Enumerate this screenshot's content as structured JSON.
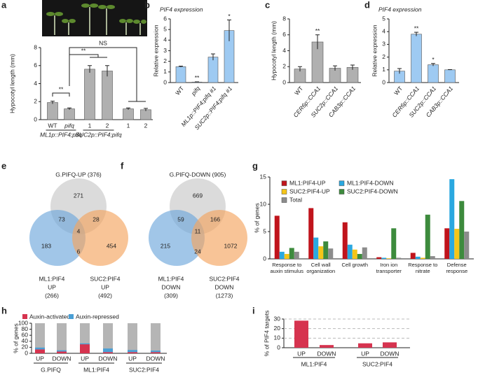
{
  "chart_data": [
    {
      "panel": "a",
      "type": "bar",
      "ylabel": "Hypocotyl length (mm)",
      "categories": [
        "WT",
        "pifq",
        "1",
        "2",
        "1",
        "2"
      ],
      "values": [
        1.9,
        1.2,
        5.6,
        5.4,
        1.2,
        1.1
      ],
      "errors": [
        0.15,
        0.1,
        0.4,
        0.6,
        0.1,
        0.15
      ],
      "group_labels": [
        "ML1p::PIF4;pifq",
        "SUC2p::PIF4;pifq"
      ],
      "annotations": [
        "**",
        "**",
        "NS"
      ],
      "color": "#b0b0b0",
      "ylim": [
        0,
        8
      ],
      "yticks": [
        0,
        2,
        4,
        6,
        8
      ]
    },
    {
      "panel": "b",
      "type": "bar",
      "title": "PIF4 expression",
      "ylabel": "Relative expression",
      "categories": [
        "WT",
        "pifq",
        "ML1p::PIF4;pifq #1",
        "SUC2p::PIF4;pifq #1"
      ],
      "values": [
        1.5,
        0.05,
        2.4,
        4.9
      ],
      "errors": [
        0.05,
        0.02,
        0.3,
        1.0
      ],
      "annotations": [
        "**",
        "*"
      ],
      "color": "#9ecaf2",
      "ylim": [
        0,
        6
      ],
      "yticks": [
        0,
        1,
        2,
        3,
        4,
        5,
        6
      ]
    },
    {
      "panel": "c",
      "type": "bar",
      "ylabel": "Hypocotyl length (mm)",
      "categories": [
        "WT",
        "CER6p::CCA1",
        "SUC2p::CCA1",
        "CAB3p::CCA1"
      ],
      "values": [
        1.7,
        5.1,
        1.8,
        1.9
      ],
      "errors": [
        0.3,
        0.9,
        0.3,
        0.3
      ],
      "annotations": [
        "**"
      ],
      "color": "#b0b0b0",
      "ylim": [
        0,
        8
      ],
      "yticks": [
        0,
        2,
        4,
        6,
        8
      ]
    },
    {
      "panel": "d",
      "type": "bar",
      "title": "PIF4 expression",
      "ylabel": "Relative expression",
      "categories": [
        "WT",
        "CER6p::CCA1",
        "SUC2p::CCA1",
        "CAB3p::CCA1"
      ],
      "values": [
        0.9,
        3.8,
        1.4,
        1.0
      ],
      "errors": [
        0.2,
        0.15,
        0.1,
        0.02
      ],
      "annotations": [
        "**",
        "*"
      ],
      "color": "#9ecaf2",
      "ylim": [
        0,
        5
      ],
      "yticks": [
        0,
        1,
        2,
        3,
        4,
        5
      ]
    },
    {
      "panel": "e",
      "type": "venn",
      "title": "G.PIFQ-UP (376)",
      "left_label": [
        "ML1:PIF4",
        "UP",
        "(266)"
      ],
      "right_label": [
        "SUC2:PIF4",
        "UP",
        "(492)"
      ],
      "regions": {
        "only_top": 271,
        "only_left": 183,
        "only_right": 454,
        "top_left": 73,
        "top_right": 28,
        "left_right": 6,
        "all": 4
      }
    },
    {
      "panel": "f",
      "type": "venn",
      "title": "G.PIFQ-DOWN (905)",
      "left_label": [
        "ML1:PIF4",
        "DOWN",
        "(309)"
      ],
      "right_label": [
        "SUC2:PIF4",
        "DOWN",
        "(1273)"
      ],
      "regions": {
        "only_top": 669,
        "only_left": 215,
        "only_right": 1072,
        "top_left": 59,
        "top_right": 166,
        "left_right": 24,
        "all": 11
      }
    },
    {
      "panel": "g",
      "type": "grouped_bar",
      "ylabel": "% of genes",
      "categories": [
        "Response to auxin stimulus",
        "Cell wall organization",
        "Cell growth",
        "Iron ion transporter",
        "Response to nitrate",
        "Defense response"
      ],
      "series": [
        {
          "name": "ML1:PIF4-UP",
          "color": "#c0141c",
          "values": [
            7.9,
            9.3,
            6.7,
            0.3,
            1.1,
            5.6
          ]
        },
        {
          "name": "ML1:PIF4-DOWN",
          "color": "#2aa8e0",
          "values": [
            1.3,
            3.9,
            2.6,
            0.2,
            0.4,
            14.6
          ]
        },
        {
          "name": "SUC2:PIF4-UP",
          "color": "#f5c518",
          "values": [
            0.9,
            2.3,
            1.7,
            0.1,
            0.2,
            5.5
          ]
        },
        {
          "name": "SUC2:PIF4-DOWN",
          "color": "#3d8b3d",
          "values": [
            2.0,
            3.2,
            0.9,
            5.6,
            8.1,
            10.6
          ]
        },
        {
          "name": "Total",
          "color": "#8c8c8c",
          "values": [
            1.3,
            1.9,
            2.1,
            0.2,
            0.5,
            5.0
          ]
        }
      ],
      "ylim": [
        0,
        15
      ],
      "yticks": [
        0,
        5,
        10,
        15
      ]
    },
    {
      "panel": "h",
      "type": "stacked_bar",
      "ylabel": "% of genes",
      "categories": [
        "UP",
        "DOWN",
        "UP",
        "DOWN",
        "UP",
        "DOWN"
      ],
      "group_labels": [
        "G.PIFQ",
        "ML1:PIF4",
        "SUC2:PIF4"
      ],
      "series": [
        {
          "name": "Auxin-activated",
          "color": "#d6334f",
          "values": [
            13,
            6,
            30,
            4,
            4,
            4
          ]
        },
        {
          "name": "Auxin-repressed",
          "color": "#4a9fd5",
          "values": [
            6,
            4,
            3,
            12,
            7,
            5
          ]
        }
      ],
      "ylim": [
        0,
        100
      ],
      "yticks": [
        0,
        20,
        40,
        60,
        80,
        100
      ]
    },
    {
      "panel": "i",
      "type": "bar",
      "ylabel": "% of PIF4 targets",
      "categories": [
        "UP",
        "DOWN",
        "UP",
        "DOWN"
      ],
      "group_labels": [
        "ML1:PIF4",
        "SUC2:PIF4"
      ],
      "values": [
        28.3,
        2.8,
        4.6,
        5.6
      ],
      "color": "#d6334f",
      "ylim": [
        0,
        30
      ],
      "yticks": [
        0,
        10,
        20,
        30
      ],
      "grid": true
    }
  ]
}
